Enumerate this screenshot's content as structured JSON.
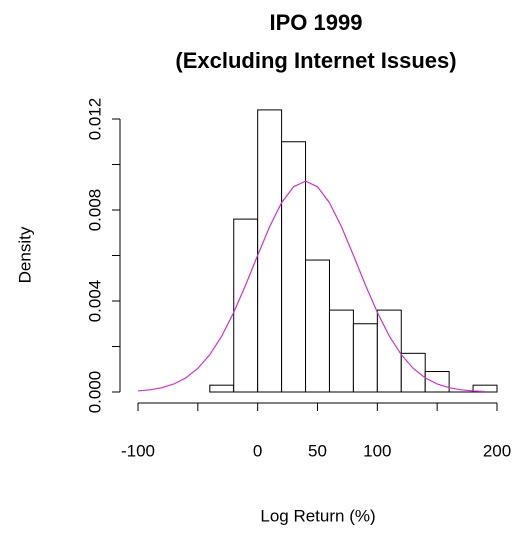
{
  "chart_data": {
    "type": "histogram",
    "title": "IPO 1999",
    "subtitle": "(Excluding Internet Issues)",
    "x_label": "Log Return (%)",
    "y_label": "Density",
    "bins": [
      -40,
      -20,
      0,
      20,
      40,
      60,
      80,
      100,
      120,
      140,
      160,
      180,
      200
    ],
    "values": [
      0.0003,
      0.0076,
      0.0124,
      0.011,
      0.0058,
      0.0036,
      0.003,
      0.0036,
      0.0017,
      0.0009,
      0,
      0.0003
    ],
    "color": "#ffffff",
    "edge_color": "#000000",
    "curve": {
      "color": "#cc33cc",
      "x": [
        -100,
        -90,
        -80,
        -70,
        -60,
        -50,
        -40,
        -30,
        -20,
        -10,
        0,
        10,
        20,
        30,
        40,
        50,
        60,
        70,
        80,
        90,
        100,
        110,
        120,
        130,
        140,
        150,
        160,
        170,
        180,
        190
      ],
      "values": [
        4.63e-05,
        9.6e-05,
        0.000189,
        0.000352,
        0.00062,
        0.00104,
        0.00164,
        0.00246,
        0.0035,
        0.00471,
        0.00601,
        0.00727,
        0.00832,
        0.00902,
        0.00927,
        0.00902,
        0.00832,
        0.00727,
        0.00601,
        0.00471,
        0.0035,
        0.00246,
        0.00164,
        0.00104,
        0.00062,
        0.000352,
        0.000189,
        9.6e-05,
        4.63e-05,
        2.11e-05
      ]
    },
    "xlim": [
      -100,
      200
    ],
    "xticks": [
      -100,
      {
        "value": -50,
        "label": null
      },
      0,
      50,
      100,
      {
        "value": 150,
        "label": null
      },
      200
    ],
    "ylim": [
      0,
      0.012
    ],
    "yticks": [
      {
        "value": 0,
        "label": "0.000"
      },
      {
        "value": 0.002,
        "label": null
      },
      {
        "value": 0.004,
        "label": "0.004"
      },
      {
        "value": 0.006,
        "label": null
      },
      {
        "value": 0.008,
        "label": "0.008"
      },
      {
        "value": 0.01,
        "label": null
      },
      {
        "value": 0.012,
        "label": "0.012"
      }
    ]
  }
}
